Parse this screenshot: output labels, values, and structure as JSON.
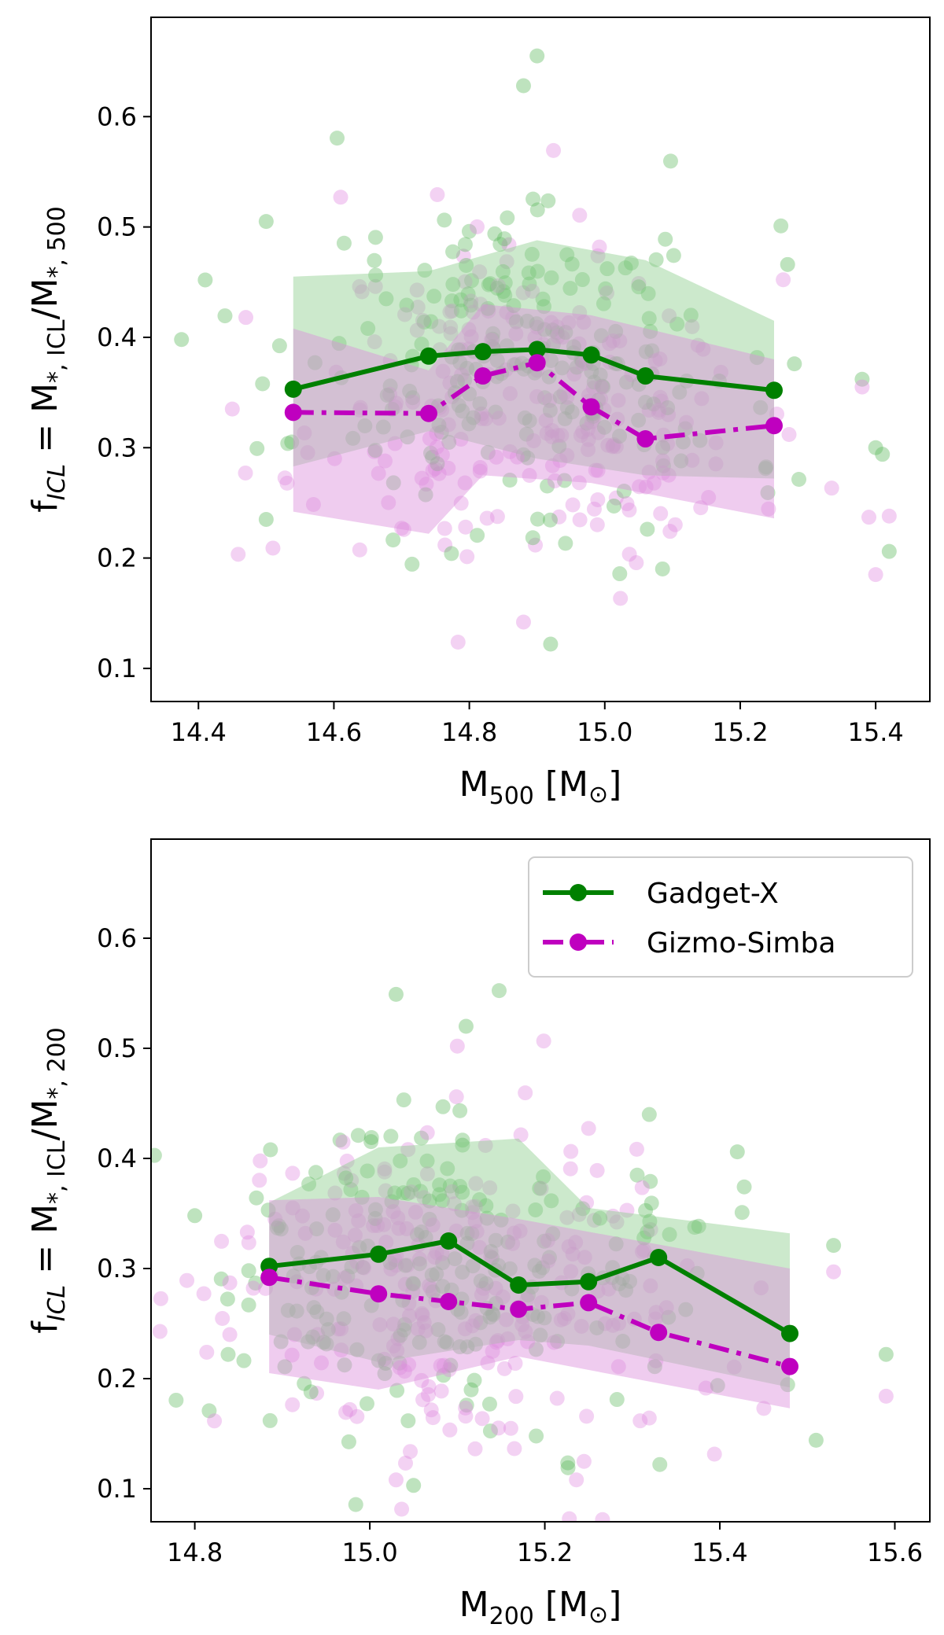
{
  "colors": {
    "gadget": "#008000",
    "gizmo": "#bf00bf",
    "gadget_scatter": "#5cb85c",
    "gizmo_scatter": "#e08ae0",
    "gadget_band": "#8fce8f",
    "gizmo_band": "#dc8ddc"
  },
  "legend": {
    "gadget_label": "Gadget-X",
    "gizmo_label": "Gizmo-Simba"
  },
  "chart_data": [
    {
      "type": "scatter",
      "panel": "top",
      "xlabel": "M500 [M⊙]",
      "xlabel_parts": {
        "main": "M",
        "sub": "500",
        "unit_open": "[M",
        "unit_sub": "⊙",
        "unit_close": "]"
      },
      "ylabel": "fICL = M*,ICL/M*,500",
      "ylabel_parts": {
        "f": "f",
        "f_sub": "ICL",
        "eq": "= M",
        "m1_sub": "*, ICL",
        "slash": "/M",
        "m2_sub": "*, 500"
      },
      "xlim": [
        14.33,
        15.48
      ],
      "ylim": [
        0.07,
        0.69
      ],
      "xticks": [
        14.4,
        14.6,
        14.8,
        15.0,
        15.2,
        15.4
      ],
      "xtick_labels": [
        "14.4",
        "14.6",
        "14.8",
        "15.0",
        "15.2",
        "15.4"
      ],
      "yticks": [
        0.1,
        0.2,
        0.3,
        0.4,
        0.5,
        0.6
      ],
      "ytick_labels": [
        "0.1",
        "0.2",
        "0.3",
        "0.4",
        "0.5",
        "0.6"
      ],
      "legend": false,
      "series": [
        {
          "name": "Gadget-X",
          "style": "solid",
          "x": [
            14.54,
            14.74,
            14.82,
            14.9,
            14.98,
            15.06,
            15.25
          ],
          "median": [
            0.353,
            0.383,
            0.387,
            0.389,
            0.384,
            0.365,
            0.352
          ],
          "band_x": [
            14.54,
            14.74,
            14.9,
            15.06,
            15.25
          ],
          "band_low": [
            0.283,
            0.315,
            0.29,
            0.275,
            0.272
          ],
          "band_high": [
            0.455,
            0.46,
            0.488,
            0.47,
            0.415
          ]
        },
        {
          "name": "Gizmo-Simba",
          "style": "dashdot",
          "x": [
            14.54,
            14.74,
            14.82,
            14.9,
            14.98,
            15.06,
            15.25
          ],
          "median": [
            0.332,
            0.331,
            0.365,
            0.377,
            0.337,
            0.308,
            0.32
          ],
          "band_x": [
            14.54,
            14.74,
            14.82,
            14.98,
            15.25
          ],
          "band_low": [
            0.242,
            0.222,
            0.275,
            0.268,
            0.236
          ],
          "band_high": [
            0.408,
            0.37,
            0.43,
            0.42,
            0.38
          ]
        }
      ],
      "scatter_seed": 11,
      "scatter_center": 14.89,
      "scatter_spread": 0.16,
      "scatter_count": 220,
      "outliers": [
        {
          "series": "Gadget-X",
          "x": 14.375,
          "y": 0.398
        },
        {
          "series": "Gadget-X",
          "x": 14.41,
          "y": 0.452
        },
        {
          "series": "Gadget-X",
          "x": 14.5,
          "y": 0.505
        },
        {
          "series": "Gadget-X",
          "x": 14.5,
          "y": 0.235
        },
        {
          "series": "Gizmo-Simba",
          "x": 14.45,
          "y": 0.335
        },
        {
          "series": "Gizmo-Simba",
          "x": 14.47,
          "y": 0.418
        },
        {
          "series": "Gizmo-Simba",
          "x": 14.51,
          "y": 0.209
        },
        {
          "series": "Gadget-X",
          "x": 15.38,
          "y": 0.362
        },
        {
          "series": "Gadget-X",
          "x": 15.4,
          "y": 0.3
        },
        {
          "series": "Gadget-X",
          "x": 15.41,
          "y": 0.294
        },
        {
          "series": "Gadget-X",
          "x": 15.42,
          "y": 0.206
        },
        {
          "series": "Gizmo-Simba",
          "x": 15.38,
          "y": 0.355
        },
        {
          "series": "Gizmo-Simba",
          "x": 15.39,
          "y": 0.237
        },
        {
          "series": "Gizmo-Simba",
          "x": 15.42,
          "y": 0.238
        },
        {
          "series": "Gizmo-Simba",
          "x": 15.4,
          "y": 0.185
        },
        {
          "series": "Gadget-X",
          "x": 14.9,
          "y": 0.655
        },
        {
          "series": "Gadget-X",
          "x": 14.88,
          "y": 0.628
        },
        {
          "series": "Gadget-X",
          "x": 14.92,
          "y": 0.122
        },
        {
          "series": "Gadget-X",
          "x": 15.27,
          "y": 0.466
        },
        {
          "series": "Gadget-X",
          "x": 15.28,
          "y": 0.376
        },
        {
          "series": "Gizmo-Simba",
          "x": 14.61,
          "y": 0.527
        },
        {
          "series": "Gizmo-Simba",
          "x": 14.88,
          "y": 0.142
        }
      ]
    },
    {
      "type": "scatter",
      "panel": "bottom",
      "xlabel": "M200 [M⊙]",
      "xlabel_parts": {
        "main": "M",
        "sub": "200",
        "unit_open": "[M",
        "unit_sub": "⊙",
        "unit_close": "]"
      },
      "ylabel": "fICL = M*,ICL/M*,200",
      "ylabel_parts": {
        "f": "f",
        "f_sub": "ICL",
        "eq": "= M",
        "m1_sub": "*, ICL",
        "slash": "/M",
        "m2_sub": "*, 200"
      },
      "xlim": [
        14.75,
        15.64
      ],
      "ylim": [
        0.07,
        0.69
      ],
      "xticks": [
        14.8,
        15.0,
        15.2,
        15.4,
        15.6
      ],
      "xtick_labels": [
        "14.8",
        "15.0",
        "15.2",
        "15.4",
        "15.6"
      ],
      "yticks": [
        0.1,
        0.2,
        0.3,
        0.4,
        0.5,
        0.6
      ],
      "ytick_labels": [
        "0.1",
        "0.2",
        "0.3",
        "0.4",
        "0.5",
        "0.6"
      ],
      "legend": true,
      "series": [
        {
          "name": "Gadget-X",
          "style": "solid",
          "x": [
            14.885,
            15.01,
            15.09,
            15.17,
            15.25,
            15.33,
            15.48
          ],
          "median": [
            0.302,
            0.313,
            0.325,
            0.285,
            0.288,
            0.31,
            0.241
          ],
          "band_x": [
            14.885,
            15.01,
            15.17,
            15.25,
            15.48
          ],
          "band_low": [
            0.24,
            0.215,
            0.235,
            0.23,
            0.192
          ],
          "band_high": [
            0.36,
            0.41,
            0.418,
            0.355,
            0.332
          ]
        },
        {
          "name": "Gizmo-Simba",
          "style": "dashdot",
          "x": [
            14.885,
            15.01,
            15.09,
            15.17,
            15.25,
            15.33,
            15.48
          ],
          "median": [
            0.292,
            0.277,
            0.27,
            0.263,
            0.269,
            0.242,
            0.211
          ],
          "band_x": [
            14.885,
            15.01,
            15.17,
            15.48
          ],
          "band_low": [
            0.205,
            0.19,
            0.22,
            0.173
          ],
          "band_high": [
            0.362,
            0.365,
            0.345,
            0.3
          ]
        }
      ],
      "scatter_seed": 29,
      "scatter_center": 15.08,
      "scatter_spread": 0.14,
      "scatter_count": 220,
      "outliers": [
        {
          "series": "Gadget-X",
          "x": 14.8,
          "y": 0.348
        },
        {
          "series": "Gizmo-Simba",
          "x": 14.84,
          "y": 0.287
        },
        {
          "series": "Gizmo-Simba",
          "x": 14.84,
          "y": 0.24
        },
        {
          "series": "Gizmo-Simba",
          "x": 14.86,
          "y": 0.333
        },
        {
          "series": "Gadget-X",
          "x": 15.53,
          "y": 0.321
        },
        {
          "series": "Gadget-X",
          "x": 15.51,
          "y": 0.144
        },
        {
          "series": "Gadget-X",
          "x": 15.59,
          "y": 0.222
        },
        {
          "series": "Gizmo-Simba",
          "x": 15.53,
          "y": 0.297
        },
        {
          "series": "Gizmo-Simba",
          "x": 15.59,
          "y": 0.184
        },
        {
          "series": "Gadget-X",
          "x": 15.03,
          "y": 0.549
        },
        {
          "series": "Gadget-X",
          "x": 15.05,
          "y": 0.103
        },
        {
          "series": "Gadget-X",
          "x": 15.11,
          "y": 0.52
        },
        {
          "series": "Gadget-X",
          "x": 15.42,
          "y": 0.406
        },
        {
          "series": "Gizmo-Simba",
          "x": 15.1,
          "y": 0.502
        },
        {
          "series": "Gizmo-Simba",
          "x": 15.03,
          "y": 0.108
        }
      ]
    }
  ]
}
